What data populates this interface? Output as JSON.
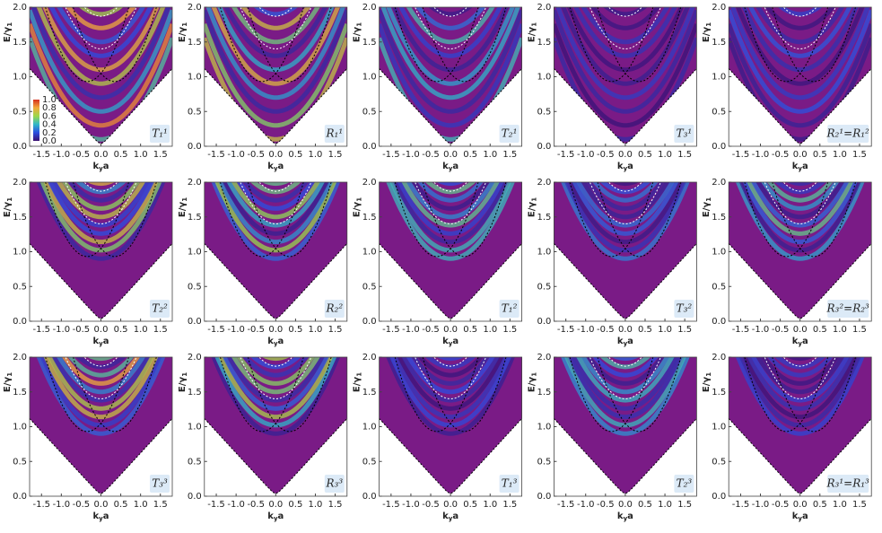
{
  "chart_data": [
    {
      "type": "heatmap",
      "label": "T₁¹",
      "xlabel": {
        "main": "k",
        "sub": "y",
        "end": "a"
      },
      "ylabel": {
        "main": "E/γ",
        "sub": "1"
      },
      "xlim": [
        -1.8,
        1.8
      ],
      "ylim": [
        0,
        2
      ],
      "xticks": [
        -1.5,
        {
          "value": -1,
          "label": "-1.0"
        },
        -0.5,
        {
          "value": 0,
          "label": "0.0"
        },
        0.5,
        {
          "value": 1,
          "label": "1.0"
        },
        1.5
      ],
      "yticks": [
        {
          "value": 0,
          "label": "0.0"
        },
        0.5,
        {
          "value": 1,
          "label": "1.0"
        },
        1.5,
        {
          "value": 2,
          "label": "2.0"
        }
      ],
      "colorbar": {
        "lim": [
          0,
          1
        ],
        "ticks": [
          {
            "value": 0,
            "label": "0.0"
          },
          0.2,
          0.4,
          0.6,
          0.8,
          {
            "value": 1,
            "label": "1.0"
          }
        ]
      }
    },
    {
      "type": "heatmap",
      "label": "R₁¹",
      "xlabel": {
        "main": "k",
        "sub": "y",
        "end": "a"
      },
      "ylabel": {
        "main": "E/γ",
        "sub": "1"
      },
      "xlim": [
        -1.8,
        1.8
      ],
      "ylim": [
        0,
        2
      ],
      "xticks": [
        -1.5,
        {
          "value": -1,
          "label": "-1.0"
        },
        -0.5,
        {
          "value": 0,
          "label": "0.0"
        },
        0.5,
        {
          "value": 1,
          "label": "1.0"
        },
        1.5
      ],
      "yticks": [
        {
          "value": 0,
          "label": "0.0"
        },
        0.5,
        {
          "value": 1,
          "label": "1.0"
        },
        1.5,
        {
          "value": 2,
          "label": "2.0"
        }
      ]
    },
    {
      "type": "heatmap",
      "label": "T₂¹",
      "xlabel": {
        "main": "k",
        "sub": "y",
        "end": "a"
      },
      "ylabel": {
        "main": "E/γ",
        "sub": "1"
      },
      "xlim": [
        -1.8,
        1.8
      ],
      "ylim": [
        0,
        2
      ],
      "xticks": [
        -1.5,
        {
          "value": -1,
          "label": "-1.0"
        },
        -0.5,
        {
          "value": 0,
          "label": "0.0"
        },
        0.5,
        {
          "value": 1,
          "label": "1.0"
        },
        1.5
      ],
      "yticks": [
        {
          "value": 0,
          "label": "0.0"
        },
        0.5,
        {
          "value": 1,
          "label": "1.0"
        },
        1.5,
        {
          "value": 2,
          "label": "2.0"
        }
      ]
    },
    {
      "type": "heatmap",
      "label": "T₃¹",
      "xlabel": {
        "main": "k",
        "sub": "y",
        "end": "a"
      },
      "ylabel": {
        "main": "E/γ",
        "sub": "1"
      },
      "xlim": [
        -1.8,
        1.8
      ],
      "ylim": [
        0,
        2
      ],
      "xticks": [
        -1.5,
        {
          "value": -1,
          "label": "-1.0"
        },
        -0.5,
        {
          "value": 0,
          "label": "0.0"
        },
        0.5,
        {
          "value": 1,
          "label": "1.0"
        },
        1.5
      ],
      "yticks": [
        {
          "value": 0,
          "label": "0.0"
        },
        0.5,
        {
          "value": 1,
          "label": "1.0"
        },
        1.5,
        {
          "value": 2,
          "label": "2.0"
        }
      ]
    },
    {
      "type": "heatmap",
      "label": "R₂¹=R₁²",
      "xlabel": {
        "main": "k",
        "sub": "y",
        "end": "a"
      },
      "ylabel": {
        "main": "E/γ",
        "sub": "1"
      },
      "xlim": [
        -1.8,
        1.8
      ],
      "ylim": [
        0,
        2
      ],
      "xticks": [
        -1.5,
        {
          "value": -1,
          "label": "-1.0"
        },
        -0.5,
        {
          "value": 0,
          "label": "0.0"
        },
        0.5,
        {
          "value": 1,
          "label": "1.0"
        },
        1.5
      ],
      "yticks": [
        {
          "value": 0,
          "label": "0.0"
        },
        0.5,
        {
          "value": 1,
          "label": "1.0"
        },
        1.5,
        {
          "value": 2,
          "label": "2.0"
        }
      ]
    },
    {
      "type": "heatmap",
      "label": "T₂²",
      "xlabel": {
        "main": "k",
        "sub": "y",
        "end": "a"
      },
      "ylabel": {
        "main": "E/γ",
        "sub": "1"
      },
      "xlim": [
        -1.8,
        1.8
      ],
      "ylim": [
        0,
        2
      ],
      "xticks": [
        -1.5,
        {
          "value": -1,
          "label": "-1.0"
        },
        -0.5,
        {
          "value": 0,
          "label": "0.0"
        },
        0.5,
        {
          "value": 1,
          "label": "1.0"
        },
        1.5
      ],
      "yticks": [
        {
          "value": 0,
          "label": "0.0"
        },
        0.5,
        {
          "value": 1,
          "label": "1.0"
        },
        1.5,
        {
          "value": 2,
          "label": "2.0"
        }
      ]
    },
    {
      "type": "heatmap",
      "label": "R₂²",
      "xlabel": {
        "main": "k",
        "sub": "y",
        "end": "a"
      },
      "ylabel": {
        "main": "E/γ",
        "sub": "1"
      },
      "xlim": [
        -1.8,
        1.8
      ],
      "ylim": [
        0,
        2
      ],
      "xticks": [
        -1.5,
        {
          "value": -1,
          "label": "-1.0"
        },
        -0.5,
        {
          "value": 0,
          "label": "0.0"
        },
        0.5,
        {
          "value": 1,
          "label": "1.0"
        },
        1.5
      ],
      "yticks": [
        {
          "value": 0,
          "label": "0.0"
        },
        0.5,
        {
          "value": 1,
          "label": "1.0"
        },
        1.5,
        {
          "value": 2,
          "label": "2.0"
        }
      ]
    },
    {
      "type": "heatmap",
      "label": "T₁²",
      "xlabel": {
        "main": "k",
        "sub": "y",
        "end": "a"
      },
      "ylabel": {
        "main": "E/γ",
        "sub": "1"
      },
      "xlim": [
        -1.8,
        1.8
      ],
      "ylim": [
        0,
        2
      ],
      "xticks": [
        -1.5,
        {
          "value": -1,
          "label": "-1.0"
        },
        -0.5,
        {
          "value": 0,
          "label": "0.0"
        },
        0.5,
        {
          "value": 1,
          "label": "1.0"
        },
        1.5
      ],
      "yticks": [
        {
          "value": 0,
          "label": "0.0"
        },
        0.5,
        {
          "value": 1,
          "label": "1.0"
        },
        1.5,
        {
          "value": 2,
          "label": "2.0"
        }
      ]
    },
    {
      "type": "heatmap",
      "label": "T₃²",
      "xlabel": {
        "main": "k",
        "sub": "y",
        "end": "a"
      },
      "ylabel": {
        "main": "E/γ",
        "sub": "1"
      },
      "xlim": [
        -1.8,
        1.8
      ],
      "ylim": [
        0,
        2
      ],
      "xticks": [
        -1.5,
        {
          "value": -1,
          "label": "-1.0"
        },
        -0.5,
        {
          "value": 0,
          "label": "0.0"
        },
        0.5,
        {
          "value": 1,
          "label": "1.0"
        },
        1.5
      ],
      "yticks": [
        {
          "value": 0,
          "label": "0.0"
        },
        0.5,
        {
          "value": 1,
          "label": "1.0"
        },
        1.5,
        {
          "value": 2,
          "label": "2.0"
        }
      ]
    },
    {
      "type": "heatmap",
      "label": "R₃²=R₂³",
      "xlabel": {
        "main": "k",
        "sub": "y",
        "end": "a"
      },
      "ylabel": {
        "main": "E/γ",
        "sub": "1"
      },
      "xlim": [
        -1.8,
        1.8
      ],
      "ylim": [
        0,
        2
      ],
      "xticks": [
        -1.5,
        {
          "value": -1,
          "label": "-1.0"
        },
        -0.5,
        {
          "value": 0,
          "label": "0.0"
        },
        0.5,
        {
          "value": 1,
          "label": "1.0"
        },
        1.5
      ],
      "yticks": [
        {
          "value": 0,
          "label": "0.0"
        },
        0.5,
        {
          "value": 1,
          "label": "1.0"
        },
        1.5,
        {
          "value": 2,
          "label": "2.0"
        }
      ]
    },
    {
      "type": "heatmap",
      "label": "T₃³",
      "xlabel": {
        "main": "k",
        "sub": "y",
        "end": "a"
      },
      "ylabel": {
        "main": "E/γ",
        "sub": "1"
      },
      "xlim": [
        -1.8,
        1.8
      ],
      "ylim": [
        0,
        2
      ],
      "xticks": [
        -1.5,
        {
          "value": -1,
          "label": "-1.0"
        },
        -0.5,
        {
          "value": 0,
          "label": "0.0"
        },
        0.5,
        {
          "value": 1,
          "label": "1.0"
        },
        1.5
      ],
      "yticks": [
        {
          "value": 0,
          "label": "0.0"
        },
        0.5,
        {
          "value": 1,
          "label": "1.0"
        },
        1.5,
        {
          "value": 2,
          "label": "2.0"
        }
      ]
    },
    {
      "type": "heatmap",
      "label": "R₃³",
      "xlabel": {
        "main": "k",
        "sub": "y",
        "end": "a"
      },
      "ylabel": {
        "main": "E/γ",
        "sub": "1"
      },
      "xlim": [
        -1.8,
        1.8
      ],
      "ylim": [
        0,
        2
      ],
      "xticks": [
        -1.5,
        {
          "value": -1,
          "label": "-1.0"
        },
        -0.5,
        {
          "value": 0,
          "label": "0.0"
        },
        0.5,
        {
          "value": 1,
          "label": "1.0"
        },
        1.5
      ],
      "yticks": [
        {
          "value": 0,
          "label": "0.0"
        },
        0.5,
        {
          "value": 1,
          "label": "1.0"
        },
        1.5,
        {
          "value": 2,
          "label": "2.0"
        }
      ]
    },
    {
      "type": "heatmap",
      "label": "T₁³",
      "xlabel": {
        "main": "k",
        "sub": "y",
        "end": "a"
      },
      "ylabel": {
        "main": "E/γ",
        "sub": "1"
      },
      "xlim": [
        -1.8,
        1.8
      ],
      "ylim": [
        0,
        2
      ],
      "xticks": [
        -1.5,
        {
          "value": -1,
          "label": "-1.0"
        },
        -0.5,
        {
          "value": 0,
          "label": "0.0"
        },
        0.5,
        {
          "value": 1,
          "label": "1.0"
        },
        1.5
      ],
      "yticks": [
        {
          "value": 0,
          "label": "0.0"
        },
        0.5,
        {
          "value": 1,
          "label": "1.0"
        },
        1.5,
        {
          "value": 2,
          "label": "2.0"
        }
      ]
    },
    {
      "type": "heatmap",
      "label": "T₂³",
      "xlabel": {
        "main": "k",
        "sub": "y",
        "end": "a"
      },
      "ylabel": {
        "main": "E/γ",
        "sub": "1"
      },
      "xlim": [
        -1.8,
        1.8
      ],
      "ylim": [
        0,
        2
      ],
      "xticks": [
        -1.5,
        {
          "value": -1,
          "label": "-1.0"
        },
        -0.5,
        {
          "value": 0,
          "label": "0.0"
        },
        0.5,
        {
          "value": 1,
          "label": "1.0"
        },
        1.5
      ],
      "yticks": [
        {
          "value": 0,
          "label": "0.0"
        },
        0.5,
        {
          "value": 1,
          "label": "1.0"
        },
        1.5,
        {
          "value": 2,
          "label": "2.0"
        }
      ]
    },
    {
      "type": "heatmap",
      "label": "R₃¹=R₁³",
      "xlabel": {
        "main": "k",
        "sub": "y",
        "end": "a"
      },
      "ylabel": {
        "main": "E/γ",
        "sub": "1"
      },
      "xlim": [
        -1.8,
        1.8
      ],
      "ylim": [
        0,
        2
      ],
      "xticks": [
        -1.5,
        {
          "value": -1,
          "label": "-1.0"
        },
        -0.5,
        {
          "value": 0,
          "label": "0.0"
        },
        0.5,
        {
          "value": 1,
          "label": "1.0"
        },
        1.5
      ],
      "yticks": [
        {
          "value": 0,
          "label": "0.0"
        },
        0.5,
        {
          "value": 1,
          "label": "1.0"
        },
        1.5,
        {
          "value": 2,
          "label": "2.0"
        }
      ]
    }
  ]
}
